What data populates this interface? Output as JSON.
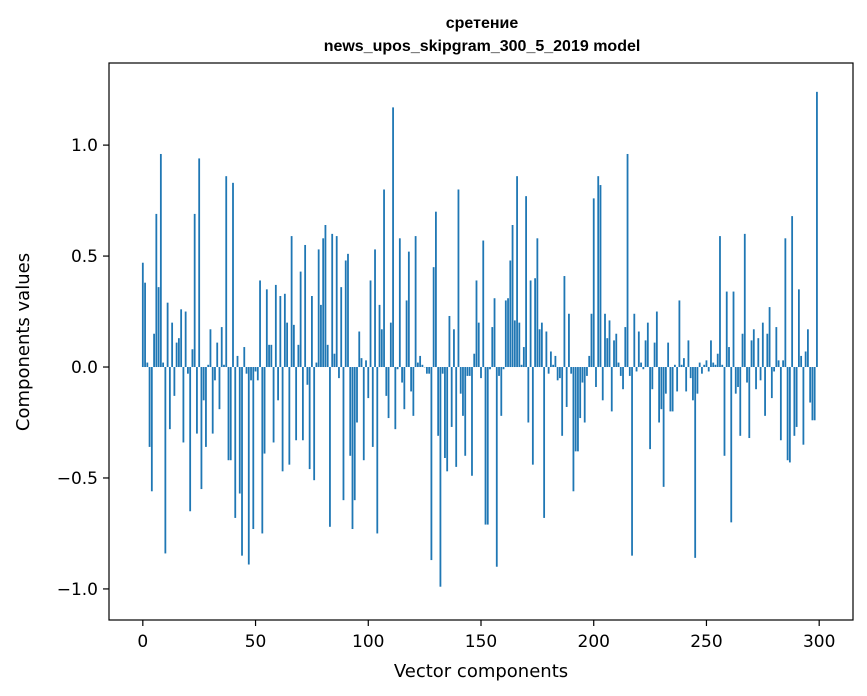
{
  "chart_data": {
    "type": "bar",
    "title": "сретение",
    "subtitle": "news_upos_skipgram_300_5_2019 model",
    "xlabel": "Vector components",
    "ylabel": "Components values",
    "xlim": [
      -15,
      315
    ],
    "ylim": [
      -1.14,
      1.37
    ],
    "xticks": [
      0,
      50,
      100,
      150,
      200,
      250,
      300
    ],
    "yticks": [
      -1.0,
      -0.5,
      0.0,
      0.5,
      1.0
    ],
    "ytick_labels": [
      "−1.0",
      "−0.5",
      "0.0",
      "0.5",
      "1.0"
    ],
    "bar_color": "#1f77b4",
    "bar_width": 0.8,
    "grid": false,
    "legend": "none",
    "values": [
      0.47,
      0.38,
      0.02,
      -0.36,
      -0.56,
      0.15,
      0.69,
      0.36,
      0.96,
      0.02,
      -0.84,
      0.29,
      -0.28,
      0.2,
      -0.13,
      0.11,
      0.13,
      0.26,
      -0.34,
      0.25,
      -0.03,
      -0.65,
      0.08,
      0.69,
      -0.3,
      0.94,
      -0.55,
      -0.15,
      -0.36,
      0.01,
      0.17,
      -0.3,
      -0.06,
      0.11,
      -0.19,
      0.18,
      0.01,
      0.86,
      -0.42,
      -0.42,
      0.83,
      -0.68,
      0.05,
      -0.57,
      -0.85,
      0.09,
      -0.03,
      -0.89,
      -0.06,
      -0.73,
      -0.02,
      -0.06,
      0.39,
      -0.75,
      -0.39,
      0.35,
      0.1,
      0.1,
      -0.34,
      0.37,
      -0.15,
      0.32,
      -0.47,
      0.33,
      0.2,
      -0.44,
      0.59,
      0.19,
      -0.33,
      0.1,
      0.43,
      -0.33,
      0.55,
      -0.08,
      -0.46,
      0.32,
      -0.51,
      0.02,
      0.53,
      0.28,
      0.58,
      0.64,
      0.1,
      -0.72,
      0.6,
      0.06,
      0.59,
      -0.05,
      0.36,
      -0.6,
      0.48,
      0.51,
      -0.4,
      -0.73,
      -0.6,
      -0.25,
      0.16,
      0.04,
      -0.42,
      0.03,
      -0.14,
      0.39,
      -0.36,
      0.53,
      -0.75,
      0.28,
      0.17,
      0.8,
      -0.13,
      -0.23,
      0.2,
      1.17,
      -0.28,
      -0.01,
      0.58,
      -0.07,
      -0.19,
      0.3,
      0.52,
      -0.11,
      -0.22,
      0.59,
      0.02,
      0.05,
      0.01,
      0.0,
      -0.03,
      -0.03,
      -0.87,
      0.45,
      0.7,
      -0.31,
      -0.99,
      -0.03,
      -0.41,
      -0.47,
      0.23,
      -0.27,
      0.17,
      -0.45,
      0.8,
      -0.12,
      -0.22,
      -0.4,
      -0.04,
      -0.04,
      -0.49,
      0.06,
      0.39,
      0.2,
      -0.05,
      0.57,
      -0.71,
      -0.71,
      -0.01,
      0.18,
      0.31,
      -0.9,
      -0.04,
      -0.22,
      -0.01,
      0.3,
      0.31,
      0.48,
      0.64,
      0.21,
      0.86,
      0.2,
      0.01,
      0.09,
      0.77,
      -0.25,
      0.39,
      -0.44,
      0.4,
      0.58,
      0.17,
      0.2,
      -0.68,
      0.16,
      -0.03,
      0.07,
      0.01,
      0.05,
      -0.06,
      -0.05,
      -0.31,
      0.41,
      -0.18,
      0.24,
      -0.03,
      -0.56,
      -0.38,
      -0.38,
      -0.23,
      -0.07,
      -0.25,
      -0.04,
      0.05,
      0.24,
      0.76,
      -0.09,
      0.86,
      0.82,
      -0.15,
      0.24,
      0.13,
      0.21,
      -0.2,
      0.12,
      0.15,
      0.02,
      -0.04,
      -0.1,
      0.18,
      0.96,
      -0.04,
      -0.85,
      0.24,
      -0.02,
      0.16,
      0.02,
      -0.01,
      0.12,
      0.2,
      -0.37,
      -0.1,
      0.11,
      0.25,
      -0.25,
      -0.19,
      -0.54,
      -0.12,
      0.11,
      -0.2,
      -0.2,
      0.01,
      -0.11,
      0.3,
      0.01,
      0.04,
      -0.11,
      0.12,
      -0.05,
      -0.15,
      -0.86,
      -0.12,
      0.02,
      -0.03,
      0.01,
      0.03,
      -0.02,
      0.12,
      0.02,
      0.01,
      0.06,
      0.59,
      0.01,
      -0.4,
      0.34,
      0.09,
      -0.7,
      0.34,
      -0.12,
      -0.09,
      -0.31,
      0.15,
      0.6,
      -0.07,
      -0.32,
      0.12,
      0.17,
      -0.1,
      0.13,
      -0.06,
      0.2,
      -0.22,
      0.15,
      0.27,
      -0.14,
      -0.02,
      0.18,
      0.03,
      -0.33,
      0.03,
      0.58,
      -0.42,
      -0.43,
      0.68,
      -0.31,
      -0.27,
      0.35,
      0.05,
      -0.35,
      0.07,
      0.17,
      -0.16,
      -0.24,
      -0.24,
      1.24
    ]
  }
}
